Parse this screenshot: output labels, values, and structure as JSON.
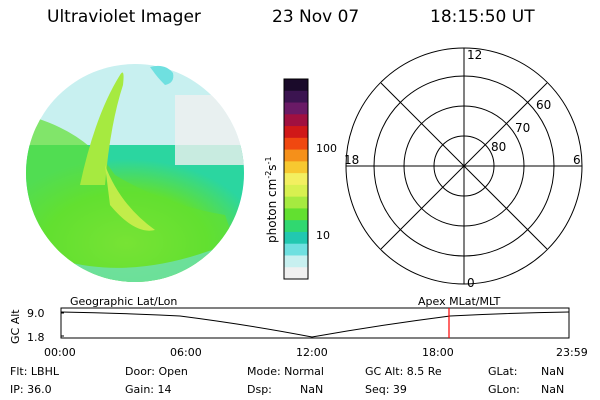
{
  "header": {
    "title": "Ultraviolet Imager",
    "date": "23 Nov 07",
    "time": "18:15:50 UT"
  },
  "colorbar": {
    "label": "photon cm",
    "exp1": "-2",
    "mid": "s",
    "exp2": "-1",
    "ticks": [
      "100",
      "10"
    ],
    "colors": [
      "#1a0a2a",
      "#3b1450",
      "#6a1a66",
      "#a01040",
      "#d01818",
      "#f04810",
      "#f5901a",
      "#f7c830",
      "#f3ef60",
      "#d8f050",
      "#a6ea40",
      "#62e030",
      "#30d870",
      "#22c8b0",
      "#6fe0e0",
      "#c8f0f0",
      "#f0f0f0"
    ]
  },
  "polar": {
    "labels": {
      "top": "12",
      "bottom": "0",
      "left": "18",
      "right": "6"
    },
    "rings": [
      "60",
      "70",
      "80"
    ]
  },
  "timeline": {
    "left_title": "Geographic Lat/Lon",
    "right_title": "Apex MLat/MLT",
    "yaxis_label": "GC Alt",
    "yticks": [
      "9.0",
      "1.8"
    ],
    "xticks": [
      "00:00",
      "06:00",
      "12:00",
      "18:00",
      "23:59"
    ],
    "marker_color": "#ff0000"
  },
  "status": {
    "flt": "Flt: LBHL",
    "ip": "IP: 36.0",
    "door": "Door: Open",
    "gain": "Gain: 14",
    "mode": "Mode: Normal",
    "dsp": "Dsp:",
    "dsp_val": "NaN",
    "gcalt": "GC Alt: 8.5 Re",
    "seq": "Seq: 39",
    "glat": "GLat:",
    "glat_val": "NaN",
    "glon": "GLon:",
    "glon_val": "NaN"
  }
}
